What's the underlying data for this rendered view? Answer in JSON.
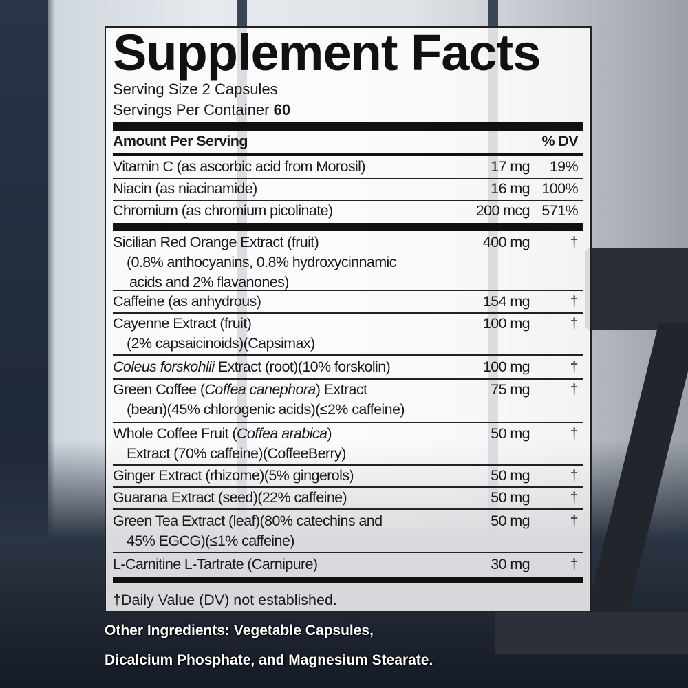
{
  "title": "Supplement Facts",
  "serving_size": "Serving Size 2 Capsules",
  "servings_per_container_label": "Servings Per Container",
  "servings_per_container_value": "60",
  "header": {
    "amount": "Amount Per Serving",
    "dv": "% DV"
  },
  "rows": [
    {
      "name": "Vitamin C (as ascorbic acid from Morosil)",
      "amount": "17 mg",
      "dv": "19%"
    },
    {
      "name": "Niacin (as niacinamide)",
      "amount": "16 mg",
      "dv": "100%"
    },
    {
      "name": "Chromium (as chromium picolinate)",
      "amount": "200 mcg",
      "dv": "571%"
    },
    {
      "name": "Sicilian Red Orange Extract (fruit)",
      "line2": "(0.8% anthocyanins, 0.8% hydroxycinnamic",
      "line3": "acids and 2% flavanones)",
      "amount": "400 mg",
      "dv": "†"
    },
    {
      "name": "Caffeine (as anhydrous)",
      "amount": "154 mg",
      "dv": "†"
    },
    {
      "name": "Cayenne Extract (fruit)",
      "line2": "(2% capsaicinoids)(Capsimax)",
      "amount": "100 mg",
      "dv": "†"
    },
    {
      "name_italic": "Coleus forskohlii",
      "name_rest": " Extract (root)(10% forskolin)",
      "amount": "100 mg",
      "dv": "†"
    },
    {
      "name_pre": "Green Coffee (",
      "name_italic": "Coffea canephora",
      "name_rest": ") Extract",
      "line2": "(bean)(45% chlorogenic acids)(≤2% caffeine)",
      "amount": "75 mg",
      "dv": "†"
    },
    {
      "name_pre": "Whole Coffee Fruit (",
      "name_italic": "Coffea arabica",
      "name_rest": ")",
      "line2": "Extract (70% caffeine)(CoffeeBerry)",
      "amount": "50 mg",
      "dv": "†"
    },
    {
      "name": "Ginger Extract (rhizome)(5% gingerols)",
      "amount": "50 mg",
      "dv": "†"
    },
    {
      "name": "Guarana Extract (seed)(22% caffeine)",
      "amount": "50 mg",
      "dv": "†"
    },
    {
      "name": "Green Tea Extract (leaf)(80% catechins and",
      "line2": "45% EGCG)(≤1% caffeine)",
      "amount": "50 mg",
      "dv": "†"
    },
    {
      "name": "L-Carnitine L-Tartrate (Carnipure)",
      "amount": "30 mg",
      "dv": "†"
    }
  ],
  "footnote": "†Daily Value (DV) not established.",
  "other_ingredients": [
    "Other Ingredients: Vegetable Capsules,",
    "Dicalcium Phosphate, and Magnesium Stearate."
  ]
}
